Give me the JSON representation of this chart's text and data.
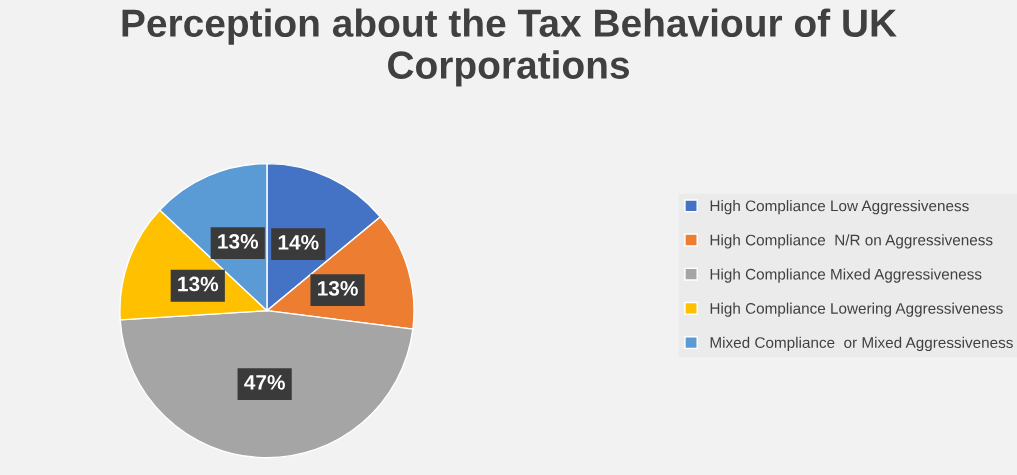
{
  "chart_data": {
    "type": "pie",
    "title": "Perception about the Tax Behaviour of UK Corporations",
    "categories": [
      "High Compliance Low Aggressiveness",
      "High Compliance  N/R on Aggressiveness",
      "High Compliance Mixed Aggressiveness",
      "High Compliance Lowering Aggressiveness",
      "Mixed Compliance  or Mixed Aggressiveness"
    ],
    "values": [
      14,
      13,
      47,
      13,
      13
    ],
    "colors": [
      "#4472c4",
      "#ed7d31",
      "#a5a5a5",
      "#ffc000",
      "#5b9bd5"
    ],
    "value_labels": [
      "14%",
      "13%",
      "47%",
      "13%",
      "13%"
    ],
    "legend": "right"
  }
}
